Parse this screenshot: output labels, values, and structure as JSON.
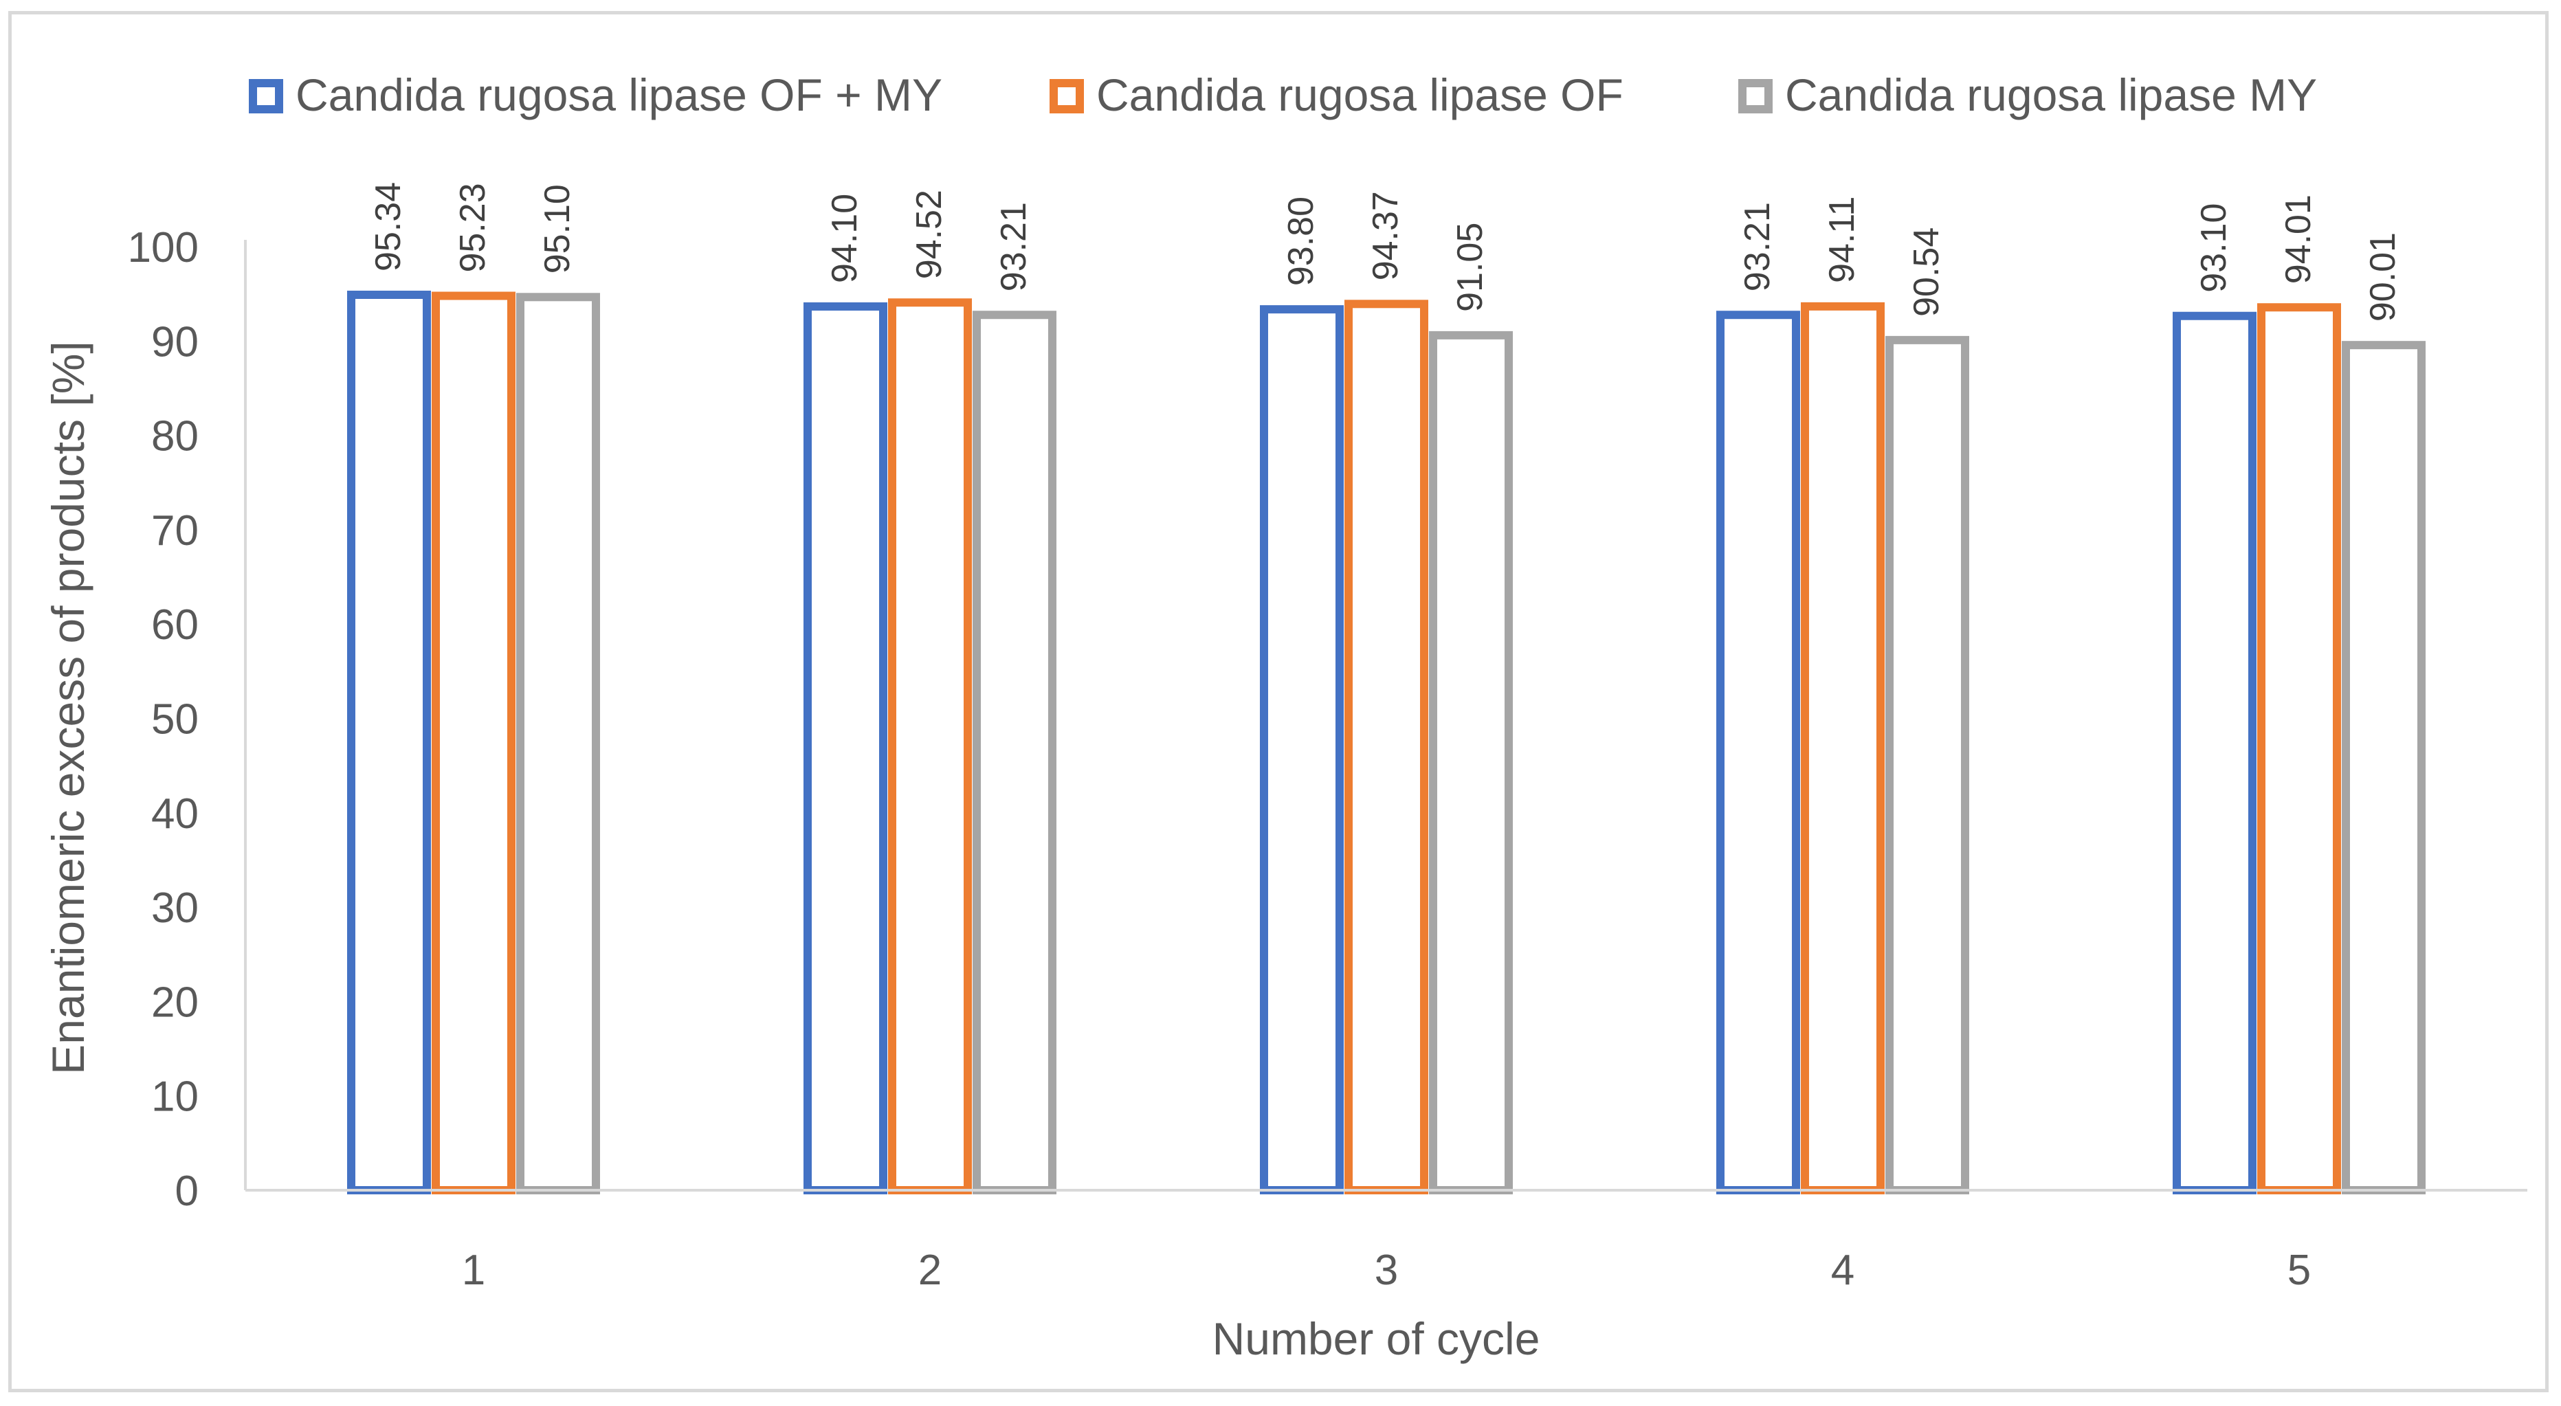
{
  "chart_data": {
    "type": "bar",
    "title": "",
    "xlabel": "Number of cycle",
    "ylabel": "Enantiomeric excess of products [%]",
    "ylim": [
      0,
      100
    ],
    "ytick_step": 10,
    "yticks": [
      "0",
      "10",
      "20",
      "30",
      "40",
      "50",
      "60",
      "70",
      "80",
      "90",
      "100"
    ],
    "categories": [
      "1",
      "2",
      "3",
      "4",
      "5"
    ],
    "legend_position": "top",
    "series": [
      {
        "name": "Candida rugosa lipase  OF + MY",
        "color": "#4472c4",
        "values": [
          95.34,
          94.1,
          93.8,
          93.21,
          93.1
        ],
        "labels": [
          "95.34",
          "94.10",
          "93.80",
          "93.21",
          "93.10"
        ]
      },
      {
        "name": "Candida rugosa lipase  OF",
        "color": "#ed7d31",
        "values": [
          95.23,
          94.52,
          94.37,
          94.11,
          94.01
        ],
        "labels": [
          "95.23",
          "94.52",
          "94.37",
          "94.11",
          "94.01"
        ]
      },
      {
        "name": "Candida rugosa lipase  MY",
        "color": "#a5a5a5",
        "values": [
          95.1,
          93.21,
          91.05,
          90.54,
          90.01
        ],
        "labels": [
          "95.10",
          "93.21",
          "91.05",
          "90.54",
          "90.01"
        ]
      }
    ]
  }
}
